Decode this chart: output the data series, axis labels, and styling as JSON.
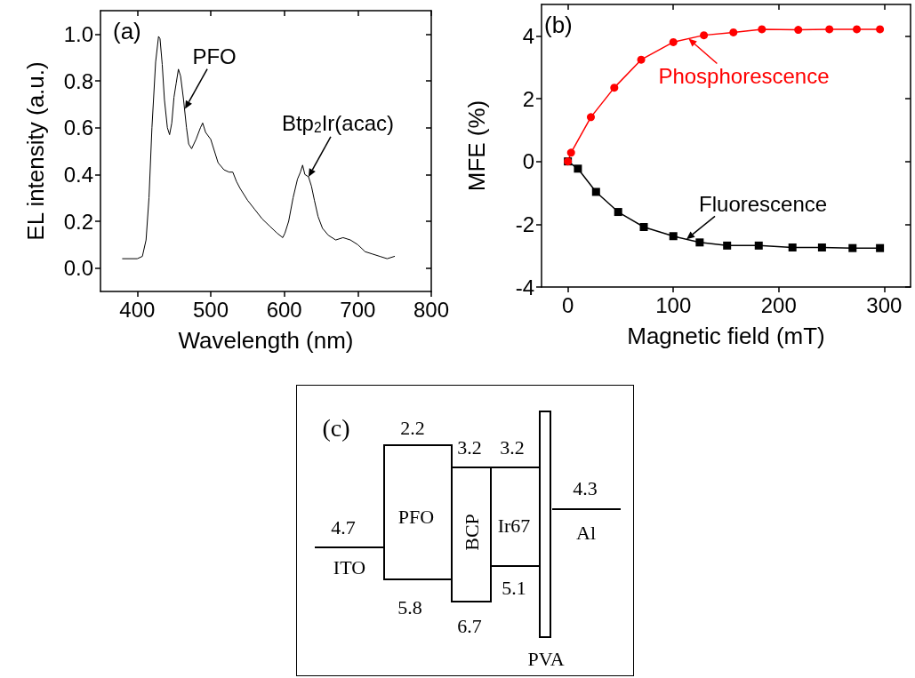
{
  "chart_data": [
    {
      "type": "line",
      "xlabel": "Wavelength (nm)",
      "ylabel": "EL intensity (a.u.)",
      "marker": "none",
      "annotations": [
        "(a)",
        {
          "text": "PFO",
          "x": 465,
          "y": 0.68
        },
        {
          "text": "Btp$_{2}$Ir(acac)",
          "x": 633,
          "y": 0.39
        }
      ],
      "xlim": [
        350,
        800
      ],
      "xticks": [
        400,
        500,
        600,
        700,
        800
      ],
      "ylim": [
        -0.1,
        1.1
      ],
      "yticks": [
        {
          "value": 0,
          "label": "0.0"
        },
        0.2,
        0.4,
        0.6,
        0.8,
        {
          "value": 1,
          "label": "1.0"
        }
      ],
      "series": [
        {
          "color": "#000000",
          "x": [
            380,
            400,
            407,
            412,
            416,
            420,
            425,
            429,
            431,
            434,
            437,
            441,
            444,
            447,
            450,
            453,
            456,
            459,
            463,
            467,
            470,
            474,
            480,
            486,
            489,
            493,
            500,
            505,
            510,
            518,
            525,
            530,
            535,
            540,
            550,
            560,
            570,
            580,
            590,
            598,
            601,
            606,
            612,
            618,
            622,
            625,
            628,
            633,
            637,
            641,
            646,
            652,
            660,
            670,
            680,
            690,
            700,
            710,
            720,
            730,
            740,
            750
          ],
          "values": [
            0.04,
            0.04,
            0.05,
            0.12,
            0.3,
            0.6,
            0.88,
            0.99,
            0.98,
            0.87,
            0.72,
            0.6,
            0.57,
            0.62,
            0.73,
            0.79,
            0.85,
            0.82,
            0.72,
            0.6,
            0.53,
            0.51,
            0.55,
            0.6,
            0.62,
            0.58,
            0.55,
            0.5,
            0.45,
            0.42,
            0.41,
            0.41,
            0.37,
            0.34,
            0.29,
            0.25,
            0.21,
            0.18,
            0.15,
            0.13,
            0.15,
            0.2,
            0.3,
            0.38,
            0.41,
            0.44,
            0.4,
            0.39,
            0.35,
            0.29,
            0.22,
            0.17,
            0.14,
            0.12,
            0.13,
            0.12,
            0.1,
            0.07,
            0.06,
            0.05,
            0.04,
            0.05
          ]
        }
      ]
    },
    {
      "type": "line",
      "xlabel": "Magnetic field (mT)",
      "ylabel": "MFE (%)",
      "annotations": [
        "(b)"
      ],
      "xlim": [
        -25,
        325
      ],
      "xticks": [
        0,
        100,
        200,
        300
      ],
      "ylim": [
        -4,
        5
      ],
      "yticks": [
        -4,
        -2,
        0,
        2,
        4
      ],
      "series": [
        {
          "name": "Fluorescence",
          "color": "#000000",
          "marker": "square",
          "x": [
            0,
            9.5,
            26.7,
            47.7,
            72,
            100,
            125,
            151,
            181,
            213,
            241,
            270,
            296
          ],
          "values": [
            0,
            -0.23,
            -0.97,
            -1.61,
            -2.09,
            -2.38,
            -2.58,
            -2.68,
            -2.68,
            -2.74,
            -2.74,
            -2.76,
            -2.76
          ]
        },
        {
          "name": "Phosphorescence",
          "color": "#ff0000",
          "marker": "circle",
          "x": [
            0,
            3,
            21.8,
            44,
            69.5,
            100,
            129,
            157,
            184,
            218.5,
            248,
            274,
            296
          ],
          "values": [
            0,
            0.28,
            1.41,
            2.35,
            3.24,
            3.8,
            4.02,
            4.11,
            4.21,
            4.19,
            4.21,
            4.21,
            4.21
          ]
        }
      ]
    },
    {
      "type": "other",
      "annotations": [
        "(c)",
        "2.2",
        "3.2",
        "3.2",
        "4.3",
        "4.7",
        "5.8",
        "6.7",
        "5.1",
        "PFO",
        "BCP",
        "Ir67",
        "ITO",
        "Al",
        "PVA"
      ]
    }
  ]
}
